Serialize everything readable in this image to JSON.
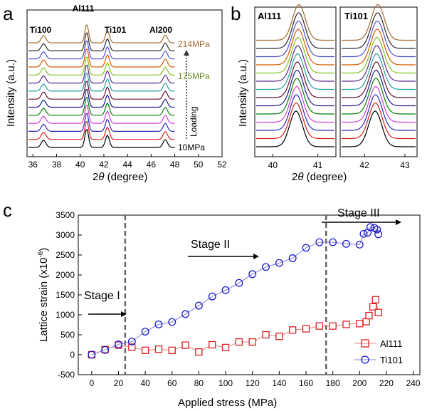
{
  "panel_a": {
    "letter": "a",
    "xlabel_pre": "2",
    "xlabel_theta": "θ",
    "xlabel_post": " (degree)",
    "ylabel": "Intensity (a.u.)",
    "peak_labels": [
      "Ti100",
      "Al111",
      "Ti101",
      "Al200"
    ],
    "top_label": "214MPa",
    "mid_label": "175MPa",
    "bottom_label": "10MPa",
    "loading_label": "Loading"
  },
  "panel_b": {
    "letter": "b",
    "ylabel": "Intensity (a.u.)",
    "xlabel_pre": "2",
    "xlabel_theta": "θ",
    "xlabel_post": " (degree)",
    "left_title": "Al111",
    "right_title": "Ti101"
  },
  "panel_c": {
    "letter": "c",
    "stage1": "Stage I",
    "stage2": "Stage II",
    "stage3": "Stage III",
    "ylabel_main": "Lattice strain (x10",
    "ylabel_exp": "-6",
    "ylabel_close": ")"
  },
  "colors": {
    "spectra": [
      "#000000",
      "#d62020",
      "#2a2ab8",
      "#d040d0",
      "#008000",
      "#1a1a90",
      "#6a1030",
      "#20a0a0",
      "#5a2a8a",
      "#80c020",
      "#d45a00",
      "#5050d0",
      "#2a2a2a",
      "#a06a30"
    ],
    "al111": "#e02020",
    "ti101": "#1a1acc",
    "ti101_line": "#8080e0",
    "al111_line": "#e88080",
    "annot_green": "#6a8a20",
    "annot_brown": "#a06a30"
  },
  "chart_data": [
    {
      "type": "line",
      "panel": "a",
      "x_ticks": [
        36,
        38,
        40,
        42,
        44,
        46,
        48,
        50,
        52
      ],
      "xlim": [
        35.5,
        52
      ],
      "peak_positions": [
        36.9,
        40.55,
        42.3,
        47.2
      ],
      "series_count": 14,
      "stress_range_MPa": [
        10,
        214
      ]
    },
    {
      "type": "line",
      "panel": "b",
      "left_x_ticks": [
        40,
        41
      ],
      "left_xlim": [
        39.6,
        41.4
      ],
      "right_x_ticks": [
        42,
        43
      ],
      "right_xlim": [
        41.4,
        43.3
      ]
    },
    {
      "type": "scatter",
      "panel": "c",
      "xlabel": "Applied stress (MPa)",
      "xlim": [
        -10,
        245
      ],
      "ylim": [
        -500,
        3500
      ],
      "x_ticks": [
        0,
        20,
        40,
        60,
        80,
        100,
        120,
        140,
        160,
        180,
        200,
        220,
        240
      ],
      "y_ticks": [
        -500,
        0,
        500,
        1000,
        1500,
        2000,
        2500,
        3000,
        3500
      ],
      "stage_boundaries": [
        25,
        175
      ],
      "series": [
        {
          "name": "Al111",
          "marker": "square",
          "points": [
            [
              0,
              0
            ],
            [
              10,
              130
            ],
            [
              20,
              240
            ],
            [
              30,
              190
            ],
            [
              40,
              110
            ],
            [
              50,
              140
            ],
            [
              60,
              110
            ],
            [
              70,
              240
            ],
            [
              80,
              70
            ],
            [
              90,
              250
            ],
            [
              100,
              180
            ],
            [
              110,
              320
            ],
            [
              120,
              320
            ],
            [
              130,
              500
            ],
            [
              140,
              460
            ],
            [
              150,
              620
            ],
            [
              160,
              650
            ],
            [
              170,
              720
            ],
            [
              180,
              720
            ],
            [
              190,
              760
            ],
            [
              200,
              780
            ],
            [
              205,
              830
            ],
            [
              207,
              980
            ],
            [
              210,
              1200
            ],
            [
              212,
              1380
            ],
            [
              214,
              1060
            ]
          ]
        },
        {
          "name": "Ti101",
          "marker": "circle",
          "points": [
            [
              0,
              0
            ],
            [
              10,
              120
            ],
            [
              20,
              260
            ],
            [
              30,
              330
            ],
            [
              40,
              580
            ],
            [
              50,
              760
            ],
            [
              60,
              820
            ],
            [
              70,
              1020
            ],
            [
              80,
              1230
            ],
            [
              90,
              1460
            ],
            [
              100,
              1620
            ],
            [
              110,
              1800
            ],
            [
              120,
              2020
            ],
            [
              130,
              2200
            ],
            [
              140,
              2300
            ],
            [
              150,
              2420
            ],
            [
              160,
              2680
            ],
            [
              170,
              2820
            ],
            [
              180,
              2820
            ],
            [
              190,
              2780
            ],
            [
              200,
              2760
            ],
            [
              203,
              3030
            ],
            [
              206,
              3060
            ],
            [
              208,
              3200
            ],
            [
              211,
              3180
            ],
            [
              213,
              3140
            ],
            [
              214,
              3020
            ]
          ]
        }
      ]
    }
  ]
}
